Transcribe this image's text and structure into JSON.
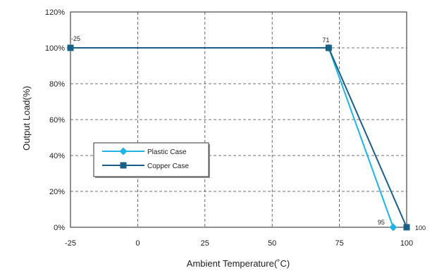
{
  "chart_data": {
    "type": "line",
    "title": "",
    "xlabel": "Ambient Temperature(˚C)",
    "ylabel": "Output Load(%)",
    "xlim": [
      -25,
      100
    ],
    "ylim": [
      0,
      120
    ],
    "x_ticks": [
      -25,
      0,
      25,
      50,
      75,
      100
    ],
    "x_tick_labels": [
      "-25",
      "0",
      "25",
      "50",
      "75",
      "100"
    ],
    "y_ticks": [
      0,
      20,
      40,
      60,
      80,
      100,
      120
    ],
    "y_tick_labels": [
      "0%",
      "20%",
      "40%",
      "60%",
      "80%",
      "100%",
      "120%"
    ],
    "grid": true,
    "grid_style": "dashed",
    "legend_position": "left-middle",
    "series": [
      {
        "name": "Plastic Case",
        "color": "#1fb3e6",
        "marker": "diamond",
        "x": [
          -25,
          71,
          95
        ],
        "y": [
          100,
          100,
          0
        ]
      },
      {
        "name": "Copper Case",
        "color": "#1a5f87",
        "marker": "square",
        "x": [
          -25,
          71,
          100
        ],
        "y": [
          100,
          100,
          0
        ]
      }
    ],
    "annotations": [
      {
        "text": "-25",
        "x": -25,
        "y": 100
      },
      {
        "text": "71",
        "x": 71,
        "y": 100
      },
      {
        "text": "95",
        "x": 95,
        "y": 0
      },
      {
        "text": "100",
        "x": 100,
        "y": 0
      }
    ]
  }
}
